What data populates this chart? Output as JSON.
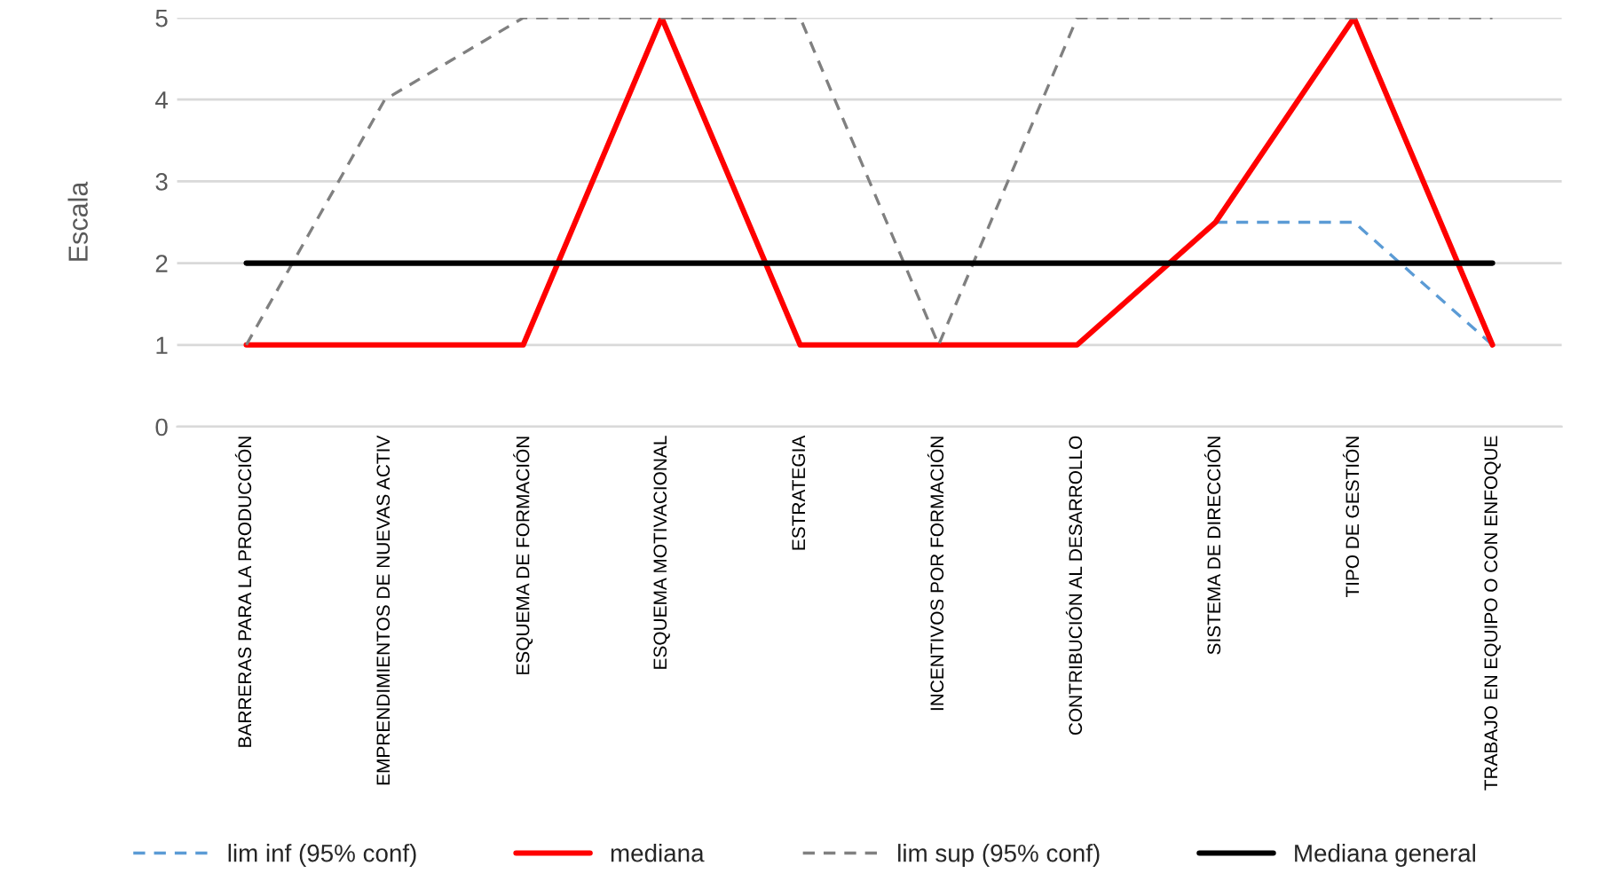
{
  "chart_data": {
    "type": "line",
    "ylabel": "Escala",
    "categories": [
      "BARRERAS PARA LA PRODUCCIÓN",
      "EMPRENDIMIENTOS DE NUEVAS ACTIV",
      "ESQUEMA DE FORMACIÓN",
      "ESQUEMA MOTIVACIONAL",
      "ESTRATEGIA",
      "INCENTIVOS POR FORMACIÓN",
      "CONTRIBUCIÓN AL DESARROLLO",
      "SISTEMA DE DIRECCIÓN",
      "TIPO DE GESTIÓN",
      "TRABAJO EN EQUIPO O CON ENFOQUE"
    ],
    "series": [
      {
        "name": "lim inf (95% conf)",
        "color": "#5b9bd5",
        "line_style": "dashed",
        "values": [
          null,
          null,
          null,
          null,
          null,
          null,
          null,
          2.5,
          2.5,
          1
        ]
      },
      {
        "name": "mediana",
        "color": "#ff0000",
        "line_style": "solid",
        "values": [
          1,
          1,
          1,
          5,
          1,
          1,
          1,
          2.5,
          5,
          1
        ]
      },
      {
        "name": "lim sup (95% conf)",
        "color": "#808080",
        "line_style": "dashed",
        "values": [
          1,
          4,
          5,
          5,
          5,
          1,
          5,
          5,
          5,
          5
        ]
      },
      {
        "name": "Mediana general",
        "color": "#000000",
        "line_style": "solid",
        "values": [
          2,
          2,
          2,
          2,
          2,
          2,
          2,
          2,
          2,
          2
        ]
      }
    ],
    "ylim": [
      0,
      5
    ],
    "yticks": [
      0,
      1,
      2,
      3,
      4,
      5
    ],
    "grid": "y",
    "legend": "bottom",
    "marker": "none"
  }
}
